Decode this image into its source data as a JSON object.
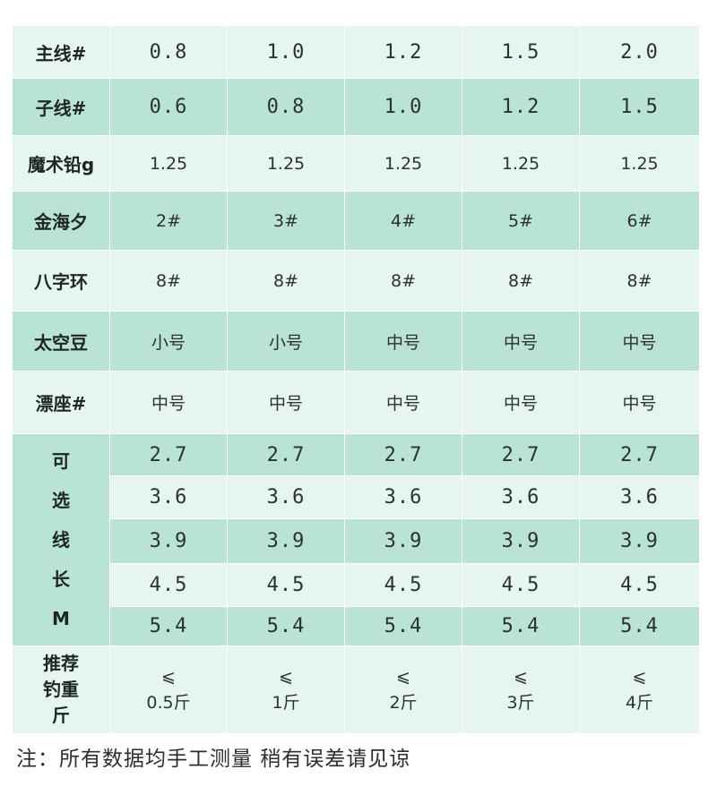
{
  "rows": {
    "main_line": {
      "label": "主线#",
      "values": [
        "0.8",
        "1.0",
        "1.2",
        "1.5",
        "2.0"
      ]
    },
    "sub_line": {
      "label": "子线#",
      "values": [
        "0.6",
        "0.8",
        "1.0",
        "1.2",
        "1.5"
      ]
    },
    "magic_lead": {
      "label": "魔术铅g",
      "values": [
        "1.25",
        "1.25",
        "1.25",
        "1.25",
        "1.25"
      ]
    },
    "hook": {
      "label": "金海夕",
      "values": [
        "2#",
        "3#",
        "4#",
        "5#",
        "6#"
      ]
    },
    "swivel": {
      "label": "八字环",
      "values": [
        "8#",
        "8#",
        "8#",
        "8#",
        "8#"
      ]
    },
    "space_bean": {
      "label": "太空豆",
      "values": [
        "小号",
        "小号",
        "中号",
        "中号",
        "中号"
      ]
    },
    "float_seat": {
      "label": "漂座#",
      "values": [
        "中号",
        "中号",
        "中号",
        "中号",
        "中号"
      ]
    }
  },
  "line_length": {
    "label_chars": [
      "可",
      "选",
      "线",
      "长",
      "M"
    ],
    "values": [
      "2.7",
      "3.6",
      "3.9",
      "4.5",
      "5.4"
    ]
  },
  "recommended": {
    "label_lines": [
      "推荐",
      "钓重",
      "斤"
    ],
    "symbol": "⩽",
    "weights": [
      "0.5斤",
      "1斤",
      "2斤",
      "3斤",
      "4斤"
    ]
  },
  "footnote": "注：所有数据均手工测量 稍有误差请见谅",
  "colors": {
    "light": "#e6f6ee",
    "dark": "#b9e3d2",
    "text": "#2a2f2d"
  }
}
